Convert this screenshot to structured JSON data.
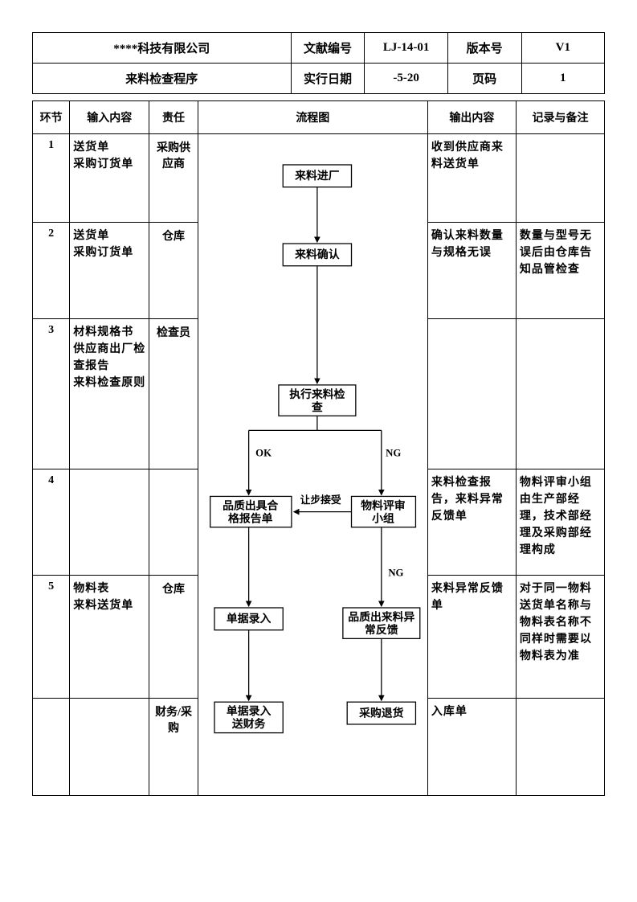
{
  "header": {
    "company": "****科技有限公司",
    "doc_no_label": "文献编号",
    "doc_no": "LJ-14-01",
    "version_label": "版本号",
    "version": "V1",
    "title": "来料检查程序",
    "date_label": "实行日期",
    "date": "-5-20",
    "page_label": "页码",
    "page": "1"
  },
  "columns": {
    "step": "环节",
    "input": "输入内容",
    "resp": "责任",
    "flow": "流程图",
    "output": "输出内容",
    "notes": "记录与备注"
  },
  "rows": [
    {
      "step": "1",
      "input": "送货单\n采购订货单",
      "resp": "采购供应商",
      "output": "收到供应商来料送货单",
      "notes": ""
    },
    {
      "step": "2",
      "input": "送货单\n采购订货单",
      "resp": "仓库",
      "output": "确认来料数量与规格无误",
      "notes": "数量与型号无误后由仓库告知品管检查"
    },
    {
      "step": "3",
      "input": "材料规格书\n供应商出厂检查报告\n来料检查原则",
      "resp": "检查员",
      "output": "",
      "notes": ""
    },
    {
      "step": "4",
      "input": "",
      "resp": "",
      "output": "来料检查报告，来料异常反馈单",
      "notes": "物料评审小组由生产部经理，技术部经理及采购部经理构成"
    },
    {
      "step": "5",
      "input": "物料表\n来料送货单",
      "resp": "仓库",
      "output": "来料异常反馈单",
      "notes": "对于同一物料送货单名称与物料表名称不同样时需要以物料表为准"
    },
    {
      "step": "",
      "input": "",
      "resp": "财务/采购",
      "output": "入库单",
      "notes": ""
    }
  ],
  "flow": {
    "nodes": {
      "n1": "来料进厂",
      "n2": "来料确认",
      "n3": "执行来料检查",
      "n4": "品质出具合格报告单",
      "n5": "物料评审小组",
      "n6": "单据录入",
      "n7": "品质出来料异常反馈",
      "n8": "单据录入送财务",
      "n9": "采购退货"
    },
    "labels": {
      "ok": "OK",
      "ng": "NG",
      "ng2": "NG",
      "concession": "让步接受"
    }
  }
}
